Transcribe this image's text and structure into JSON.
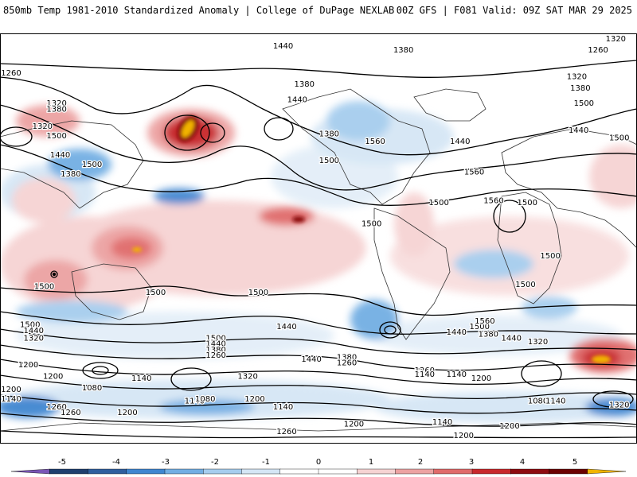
{
  "header": {
    "title": "850mb Temp 1981-2010 Standardized Anomaly | College of DuPage NEXLAB",
    "run_info": "00Z GFS | F081 Valid: 09Z SAT MAR 29 2025"
  },
  "map": {
    "projection": "equirectangular global",
    "contour_field": "geopotential height",
    "contour_labels": [
      {
        "v": "1260",
        "lon": -176,
        "lat": 68
      },
      {
        "v": "1320",
        "lon": -148,
        "lat": 52
      },
      {
        "v": "1380",
        "lon": -148,
        "lat": 49
      },
      {
        "v": "1320",
        "lon": -156,
        "lat": 40
      },
      {
        "v": "1500",
        "lon": -148,
        "lat": 35
      },
      {
        "v": "1440",
        "lon": -146,
        "lat": 25
      },
      {
        "v": "1380",
        "lon": -140,
        "lat": 15
      },
      {
        "v": "1500",
        "lon": -128,
        "lat": 20
      },
      {
        "v": "1440",
        "lon": -20,
        "lat": 82
      },
      {
        "v": "1380",
        "lon": -8,
        "lat": 62
      },
      {
        "v": "1440",
        "lon": -12,
        "lat": 54
      },
      {
        "v": "1560",
        "lon": 32,
        "lat": 32
      },
      {
        "v": "1500",
        "lon": 6,
        "lat": 22
      },
      {
        "v": "1380",
        "lon": 6,
        "lat": 36
      },
      {
        "v": "1380",
        "lon": 48,
        "lat": 80
      },
      {
        "v": "1440",
        "lon": 80,
        "lat": 32
      },
      {
        "v": "1500",
        "lon": 68,
        "lat": 0
      },
      {
        "v": "1560",
        "lon": 88,
        "lat": 16
      },
      {
        "v": "1560",
        "lon": 99,
        "lat": 1
      },
      {
        "v": "1500",
        "lon": 30,
        "lat": -11
      },
      {
        "v": "1500",
        "lon": -155,
        "lat": -44
      },
      {
        "v": "1500",
        "lon": -92,
        "lat": -47
      },
      {
        "v": "1320",
        "lon": 146,
        "lat": 66
      },
      {
        "v": "1380",
        "lon": 148,
        "lat": 60
      },
      {
        "v": "1500",
        "lon": 150,
        "lat": 52
      },
      {
        "v": "1500",
        "lon": 170,
        "lat": 34
      },
      {
        "v": "1440",
        "lon": 147,
        "lat": 38
      },
      {
        "v": "1500",
        "lon": 118,
        "lat": 0
      },
      {
        "v": "1500",
        "lon": 131,
        "lat": -28
      },
      {
        "v": "1500",
        "lon": 117,
        "lat": -43
      },
      {
        "v": "1260",
        "lon": 158,
        "lat": 80
      },
      {
        "v": "1320",
        "lon": 168,
        "lat": 88
      },
      {
        "v": "1500",
        "lon": -163,
        "lat": -64
      },
      {
        "v": "1440",
        "lon": -161,
        "lat": -67
      },
      {
        "v": "1320",
        "lon": -161,
        "lat": -71
      },
      {
        "v": "1500",
        "lon": -58,
        "lat": -71
      },
      {
        "v": "1440",
        "lon": -58,
        "lat": -74
      },
      {
        "v": "1380",
        "lon": -58,
        "lat": -77
      },
      {
        "v": "1260",
        "lon": -58,
        "lat": -80
      },
      {
        "v": "1440",
        "lon": -18,
        "lat": -65
      },
      {
        "v": "1500",
        "lon": -34,
        "lat": -47
      },
      {
        "v": "1440",
        "lon": -4,
        "lat": -82
      },
      {
        "v": "1380",
        "lon": 16,
        "lat": -81
      },
      {
        "v": "1260",
        "lon": 16,
        "lat": -84
      },
      {
        "v": "1200",
        "lon": -164,
        "lat": -85
      },
      {
        "v": "1200",
        "lon": -150,
        "lat": -91
      },
      {
        "v": "1140",
        "lon": -100,
        "lat": -92
      },
      {
        "v": "1080",
        "lon": -128,
        "lat": -97
      },
      {
        "v": "1200",
        "lon": -178,
        "lat": -98
      },
      {
        "v": "1140",
        "lon": -176,
        "lat": -103
      },
      {
        "v": "1260",
        "lon": -148,
        "lat": -107
      },
      {
        "v": "1260",
        "lon": -140,
        "lat": -110
      },
      {
        "v": "1200",
        "lon": -108,
        "lat": -110
      },
      {
        "v": "1140",
        "lon": -70,
        "lat": -104
      },
      {
        "v": "1080",
        "lon": -64,
        "lat": -103
      },
      {
        "v": "1320",
        "lon": -40,
        "lat": -91
      },
      {
        "v": "1200",
        "lon": -36,
        "lat": -103
      },
      {
        "v": "1140",
        "lon": -20,
        "lat": -107
      },
      {
        "v": "1200",
        "lon": 20,
        "lat": -116
      },
      {
        "v": "1260",
        "lon": -18,
        "lat": -120
      },
      {
        "v": "1380",
        "lon": 96,
        "lat": -69
      },
      {
        "v": "1440",
        "lon": 78,
        "lat": -68
      },
      {
        "v": "1500",
        "lon": 91,
        "lat": -65
      },
      {
        "v": "1560",
        "lon": 94,
        "lat": -62
      },
      {
        "v": "1440",
        "lon": 109,
        "lat": -71
      },
      {
        "v": "1320",
        "lon": 124,
        "lat": -73
      },
      {
        "v": "1260",
        "lon": 60,
        "lat": -88
      },
      {
        "v": "1140",
        "lon": 60,
        "lat": -90
      },
      {
        "v": "1200",
        "lon": 92,
        "lat": -92
      },
      {
        "v": "1140",
        "lon": 78,
        "lat": -90
      },
      {
        "v": "1080",
        "lon": 124,
        "lat": -104
      },
      {
        "v": "1140",
        "lon": 134,
        "lat": -104
      },
      {
        "v": "1320",
        "lon": 170,
        "lat": -106
      },
      {
        "v": "1200",
        "lon": 108,
        "lat": -117
      },
      {
        "v": "1140",
        "lon": 70,
        "lat": -115
      },
      {
        "v": "1200",
        "lon": 82,
        "lat": -122
      }
    ]
  },
  "colorbar": {
    "tick_labels": [
      "-5",
      "-4",
      "-3",
      "-2",
      "-1",
      "0",
      "1",
      "2",
      "3",
      "4",
      "5"
    ],
    "colors": [
      "#7a55b5",
      "#1f3f6e",
      "#2f5f9e",
      "#3f86d0",
      "#72aee3",
      "#a6cdee",
      "#d5e6f5",
      "#ffffff",
      "#ffffff",
      "#f6d3d3",
      "#eca2a2",
      "#e06a6a",
      "#c8282c",
      "#8d0b10",
      "#6a0000",
      "#f1b400"
    ]
  }
}
